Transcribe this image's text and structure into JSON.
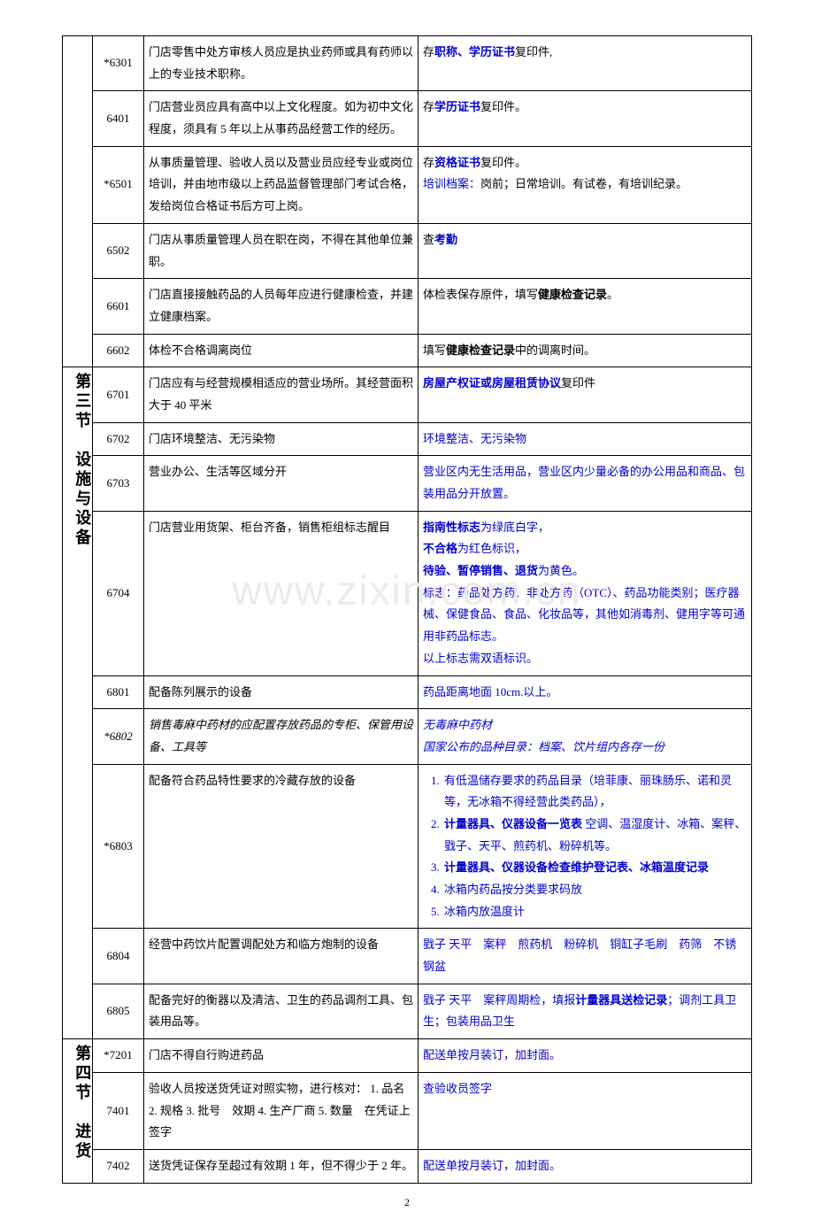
{
  "watermark": "www.zixin.com.cn",
  "pageno": "2",
  "sections": [
    {
      "title": "",
      "rows": [
        {
          "code": "*6301",
          "rule": "门店零售中处方审核人员应是执业药师或具有药师以上的专业技术职称。",
          "noteHtml": "存<span class='blue bold'>职称、学历证书</span>复印件,"
        },
        {
          "code": "6401",
          "rule": "门店营业员应具有高中以上文化程度。如为初中文化程度，须具有 5 年以上从事药品经营工作的经历。",
          "noteHtml": "存<span class='blue bold'>学历证书</span>复印件。"
        },
        {
          "code": "*6501",
          "rule": "从事质量管理、验收人员以及营业员应经专业或岗位培训，并由地市级以上药品监督管理部门考试合格，发给岗位合格证书后方可上岗。",
          "noteHtml": "存<span class='blue bold'>资格证书</span>复印件。<br><span class='blue'>培训档案：</span>岗前；日常培训。有试卷，有培训纪录。"
        },
        {
          "code": "6502",
          "rule": "门店从事质量管理人员在职在岗，不得在其他单位兼职。",
          "noteHtml": "查<span class='blue bold'>考勤</span>"
        },
        {
          "code": "6601",
          "rule": "门店直接接触药品的人员每年应进行健康检查，并建立健康档案。",
          "noteHtml": "体检表保存原件，填写<span class='bold'>健康检查记录</span>。"
        },
        {
          "code": "6602",
          "rule": "体检不合格调离岗位",
          "noteHtml": "填写<span class='bold'>健康检查记录</span>中的调离时间。"
        }
      ]
    },
    {
      "title": "第三节　设施与设备",
      "rows": [
        {
          "code": "6701",
          "rule": "门店应有与经营规模相适应的营业场所。其经营面积大于 40 平米",
          "noteHtml": "<span class='blue bold'>房屋产权证或房屋租赁协议</span>复印件"
        },
        {
          "code": "6702",
          "rule": "门店环境整洁、无污染物",
          "noteHtml": "<span class='blue'>环境整洁、无污染物</span>"
        },
        {
          "code": "6703",
          "rule": "营业办公、生活等区域分开",
          "noteHtml": "<span class='blue'>营业区内无生活用品，营业区内少量必备的办公用品和商品、包装用品分开放置。</span>"
        },
        {
          "code": "6704",
          "rule": "门店营业用货架、柜台齐备，销售柜组标志醒目",
          "noteHtml": "<span class='blue bold'>指南性标志</span><span class='blue'>为绿底白字，</span><br><span class='blue bold'>不合格</span><span class='blue'>为红色标识，</span><br><span class='blue bold'>待验、暂停销售、退货</span><span class='blue'>为黄色。</span><br><span class='blue'>标志：药品处方药、非处方药（OTC）、药品功能类别；医疗器械、保健食品、食品、化妆品等，其他如消毒剂、健用字等可通用非药品标志。</span><br><span class='blue'>以上标志需双语标识。</span>"
        },
        {
          "code": "6801",
          "rule": "配备陈列展示的设备",
          "noteHtml": "<span class='blue'>药品距离地面 10cm.以上。</span>"
        },
        {
          "code": "*6802",
          "ruleHtml": "<span class='italic'>销售毒麻中药材的应配置存放药品的专柜、保管用设备、工具等</span>",
          "noteHtml": "<span class='italic blue'>无毒麻中药材</span><br><span class='italic blue'>国家公布的品种目录：档案、饮片组内各存一份</span>"
        },
        {
          "code": "*6803",
          "rule": "配备符合药品特性要求的冷藏存放的设备",
          "noteList": [
            "<span class='blue'>有低温储存要求的药品目录（培菲康、丽珠肠乐、诺和灵等，无冰箱不得经营此类药品），</span>",
            "<span class='blue bold'>计量器具、仪器设备一览表</span> <span class='blue'>空调、温湿度计、冰箱、案秤、戥子、天平、煎药机、粉碎机等。</span>",
            "<span class='blue bold'>计量器具、仪器设备检查维护登记表、冰箱温度记录</span>",
            "<span class='blue'>冰箱内药品按分类要求码放</span>",
            "<span class='blue'>冰箱内放温度计</span>"
          ]
        },
        {
          "code": "6804",
          "rule": "经营中药饮片配置调配处方和临方炮制的设备",
          "noteHtml": "<span class='blue'>戥子 天平　案秤　煎药机　粉碎机　铜缸子毛刷　药筛　不锈钢盆</span>"
        },
        {
          "code": "6805",
          "rule": "配备完好的衡器以及清洁、卫生的药品调剂工具、包装用品等。",
          "noteHtml": "<span class='blue'>戥子 天平　案秤周期检，填报</span><span class='blue bold'>计量器具送检记录</span><span class='blue'>；调剂工具卫生；包装用品卫生</span>"
        }
      ]
    },
    {
      "title": "第四节　进货",
      "rows": [
        {
          "code": "*7201",
          "rule": "门店不得自行购进药品",
          "noteHtml": "<span class='blue'>配送单按月装订，加封面。</span>"
        },
        {
          "code": "7401",
          "rule": "验收人员按送货凭证对照实物，进行核对：\n1. 品名 2. 规格 3. 批号　效期 4. 生产厂商\n5. 数量　在凭证上签字",
          "noteHtml": "<span class='blue'>查验收员签字</span>"
        },
        {
          "code": "7402",
          "rule": "送货凭证保存至超过有效期 1 年，但不得少于 2 年。",
          "noteHtml": "<span class='blue'>配送单按月装订，加封面。</span>"
        }
      ]
    }
  ]
}
